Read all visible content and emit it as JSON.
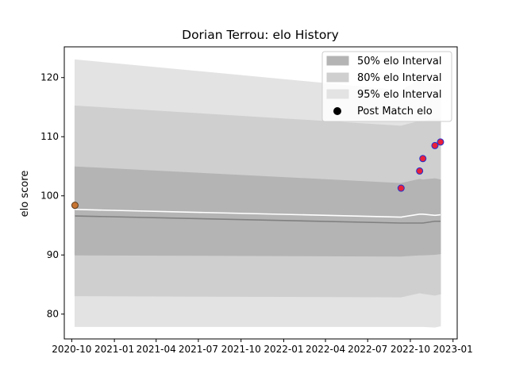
{
  "chart_data": {
    "type": "line",
    "title": "Dorian Terrou: elo History",
    "xlabel": "",
    "ylabel": "elo score",
    "xlim": [
      "2020-09-15",
      "2023-01-10"
    ],
    "ylim": [
      75.8,
      125.2
    ],
    "x_ticks": [
      "2020-10",
      "2021-01",
      "2021-04",
      "2021-07",
      "2021-10",
      "2022-01",
      "2022-04",
      "2022-07",
      "2022-10",
      "2023-01"
    ],
    "y_ticks": [
      80,
      90,
      100,
      110,
      120
    ],
    "grid": false,
    "legend_position": "top-right",
    "x": [
      "2020-10-08",
      "2022-09-11",
      "2022-10-21",
      "2022-10-28",
      "2022-11-23",
      "2022-12-05"
    ],
    "series": [
      {
        "kind": "band",
        "name": "95% elo Interval",
        "color": "#e3e3e3",
        "upper": [
          123.0,
          117.8,
          119.6,
          119.2,
          119.0,
          119.1
        ],
        "lower": [
          77.9,
          77.9,
          77.9,
          77.9,
          77.8,
          78.0
        ]
      },
      {
        "kind": "band",
        "name": "80% elo Interval",
        "color": "#cfcfcf",
        "upper": [
          115.2,
          111.8,
          112.6,
          112.6,
          113.0,
          113.0
        ],
        "lower": [
          83.1,
          82.9,
          83.6,
          83.5,
          83.2,
          83.4
        ]
      },
      {
        "kind": "band",
        "name": "50% elo Interval",
        "color": "#b4b4b4",
        "upper": [
          104.9,
          102.1,
          102.8,
          102.7,
          102.9,
          102.7
        ],
        "lower": [
          90.0,
          89.8,
          90.0,
          90.0,
          90.1,
          90.2
        ]
      },
      {
        "kind": "line",
        "color": "#808080",
        "values": [
          96.6,
          95.4,
          95.4,
          95.4,
          95.7,
          95.7
        ]
      },
      {
        "kind": "line",
        "color": "#ffffff",
        "values": [
          97.7,
          96.4,
          96.9,
          96.9,
          96.7,
          96.8
        ]
      },
      {
        "kind": "scatter",
        "name": "Post Match elo",
        "points": [
          {
            "x": "2020-10-08",
            "y": 98.4,
            "fill": "#c87533",
            "edge": "#5a3a1a"
          },
          {
            "x": "2022-09-11",
            "y": 101.3,
            "fill": "#e8203a",
            "edge": "#2030d0"
          },
          {
            "x": "2022-10-21",
            "y": 104.2,
            "fill": "#e8203a",
            "edge": "#2030d0"
          },
          {
            "x": "2022-10-28",
            "y": 106.3,
            "fill": "#e8203a",
            "edge": "#2030d0"
          },
          {
            "x": "2022-11-23",
            "y": 108.5,
            "fill": "#e8203a",
            "edge": "#2030d0"
          },
          {
            "x": "2022-12-05",
            "y": 109.1,
            "fill": "#e8203a",
            "edge": "#2030d0"
          }
        ]
      }
    ],
    "legend": [
      {
        "label": "50% elo Interval",
        "swatch": "patch",
        "color": "#b4b4b4"
      },
      {
        "label": "80% elo Interval",
        "swatch": "patch",
        "color": "#cfcfcf"
      },
      {
        "label": "95% elo Interval",
        "swatch": "patch",
        "color": "#e3e3e3"
      },
      {
        "label": "Post Match elo",
        "swatch": "marker",
        "color": "#000000"
      }
    ]
  }
}
